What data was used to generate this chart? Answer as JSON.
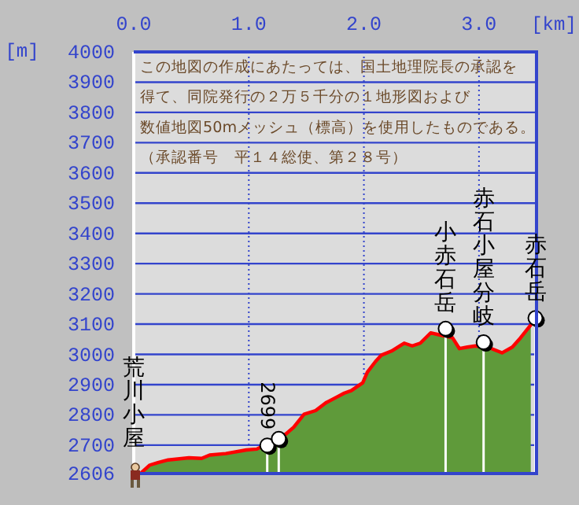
{
  "chart_data": {
    "type": "area",
    "xlabel": "[km]",
    "ylabel": "[m]",
    "xlim": [
      0,
      3.5
    ],
    "xticks": [
      {
        "value": 0,
        "label": "0.0"
      },
      {
        "value": 1,
        "label": "1.0"
      },
      {
        "value": 2,
        "label": "2.0"
      },
      {
        "value": 3,
        "label": "3.0"
      }
    ],
    "ylim": [
      2606,
      4000
    ],
    "yticks": [
      2606,
      2700,
      2800,
      2900,
      3000,
      3100,
      3200,
      3300,
      3400,
      3500,
      3600,
      3700,
      3800,
      3900,
      4000
    ],
    "grid": true,
    "annotations": [
      "この地図の作成にあたっては、国土地理院長の承認を",
      "得て、同院発行の２万５千分の１地形図および",
      "数値地図50mメッシュ（標高）を使用したものである。",
      "（承認番号　平１４総使、第２８号）",
      {
        "text": "荒川小屋",
        "x": 0,
        "y": 2606
      },
      {
        "text": "2699",
        "x": 1.16,
        "y": 2699
      },
      {
        "text": "小赤石岳",
        "x": 2.71,
        "y": 3085
      },
      {
        "text": "赤石小屋分岐",
        "x": 3.04,
        "y": 3040
      },
      {
        "text": "赤石岳",
        "x": 3.49,
        "y": 3120
      }
    ],
    "series": [
      {
        "color": "#5f9a3a",
        "x": [
          0.07,
          0.14,
          0.21,
          0.3,
          0.48,
          0.59,
          0.66,
          0.8,
          0.98,
          1.07,
          1.32,
          1.39,
          1.48,
          1.58,
          1.67,
          1.76,
          1.83,
          1.89,
          1.99,
          2.03,
          2.1,
          2.15,
          2.24,
          2.35,
          2.42,
          2.49,
          2.58,
          2.65,
          2.77,
          2.83,
          2.9,
          2.97,
          3.11,
          3.2,
          3.29,
          3.36,
          3.45
        ],
        "values": [
          2610,
          2634,
          2642,
          2651,
          2658,
          2656,
          2667,
          2672,
          2684,
          2687,
          2736,
          2759,
          2802,
          2814,
          2840,
          2858,
          2872,
          2880,
          2906,
          2941,
          2976,
          2997,
          3011,
          3037,
          3028,
          3037,
          3071,
          3065,
          3055,
          3019,
          3024,
          3028,
          3019,
          3005,
          3024,
          3054,
          3097
        ]
      },
      {
        "type": "lollipop",
        "color": "#ffffff",
        "marker": "circle",
        "x": [
          1.16,
          1.26,
          2.71,
          3.04,
          3.49
        ],
        "values": [
          2699,
          2721,
          3085,
          3040,
          3120
        ]
      }
    ]
  }
}
